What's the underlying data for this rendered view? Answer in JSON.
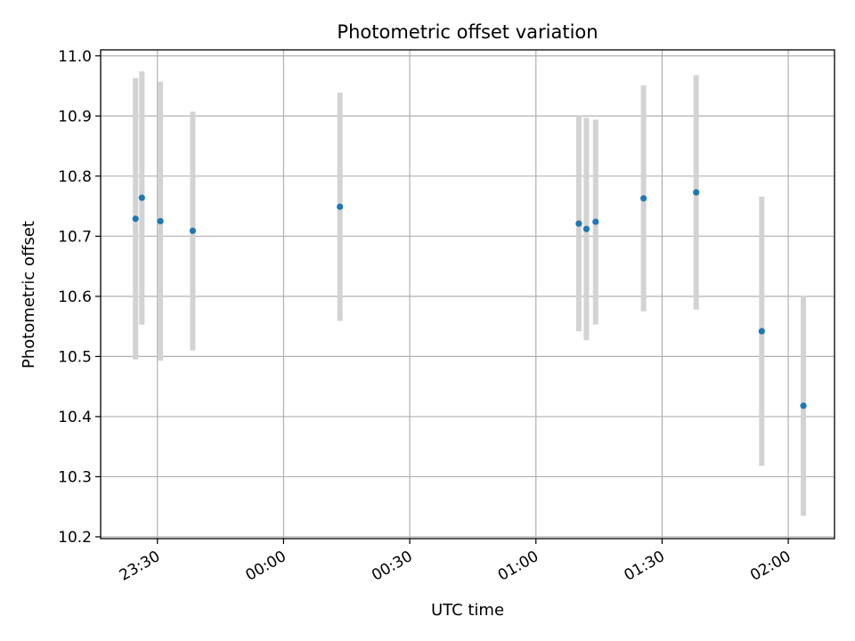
{
  "chart_data": {
    "type": "scatter",
    "title": "Photometric offset variation",
    "xlabel": "UTC time",
    "ylabel": "Photometric offset",
    "x_ticks": [
      "23:30",
      "00:00",
      "00:30",
      "01:00",
      "01:30",
      "02:00"
    ],
    "x_tick_minutes": [
      0,
      30,
      60,
      90,
      120,
      150
    ],
    "x_range_minutes": [
      -13.5,
      161
    ],
    "ylim": [
      10.197,
      11.01
    ],
    "y_ticks": [
      "10.2",
      "10.3",
      "10.4",
      "10.5",
      "10.6",
      "10.7",
      "10.8",
      "10.9",
      "11.0"
    ],
    "y_tick_values": [
      10.2,
      10.3,
      10.4,
      10.5,
      10.6,
      10.7,
      10.8,
      10.9,
      11.0
    ],
    "grid": true,
    "points": [
      {
        "x": "23:25",
        "minutes": -5.2,
        "y": 10.729,
        "err_low": 10.495,
        "err_high": 10.963
      },
      {
        "x": "23:26",
        "minutes": -3.7,
        "y": 10.764,
        "err_low": 10.553,
        "err_high": 10.974
      },
      {
        "x": "23:31",
        "minutes": 0.7,
        "y": 10.725,
        "err_low": 10.493,
        "err_high": 10.957
      },
      {
        "x": "23:38",
        "minutes": 8.4,
        "y": 10.709,
        "err_low": 10.51,
        "err_high": 10.907
      },
      {
        "x": "00:13",
        "minutes": 43.4,
        "y": 10.749,
        "err_low": 10.559,
        "err_high": 10.939
      },
      {
        "x": "01:10",
        "minutes": 100.2,
        "y": 10.721,
        "err_low": 10.542,
        "err_high": 10.9
      },
      {
        "x": "01:12",
        "minutes": 102.0,
        "y": 10.712,
        "err_low": 10.527,
        "err_high": 10.897
      },
      {
        "x": "01:14",
        "minutes": 104.2,
        "y": 10.724,
        "err_low": 10.553,
        "err_high": 10.894
      },
      {
        "x": "01:25",
        "minutes": 115.6,
        "y": 10.763,
        "err_low": 10.575,
        "err_high": 10.951
      },
      {
        "x": "01:38",
        "minutes": 128.1,
        "y": 10.773,
        "err_low": 10.578,
        "err_high": 10.968
      },
      {
        "x": "01:53",
        "minutes": 143.7,
        "y": 10.542,
        "err_low": 10.318,
        "err_high": 10.766
      },
      {
        "x": "02:03",
        "minutes": 153.6,
        "y": 10.418,
        "err_low": 10.235,
        "err_high": 10.601
      }
    ],
    "colors": {
      "point": "#1f77b4",
      "errorbar": "#d3d3d3",
      "grid": "#b0b0b0",
      "axis": "#000000"
    }
  }
}
